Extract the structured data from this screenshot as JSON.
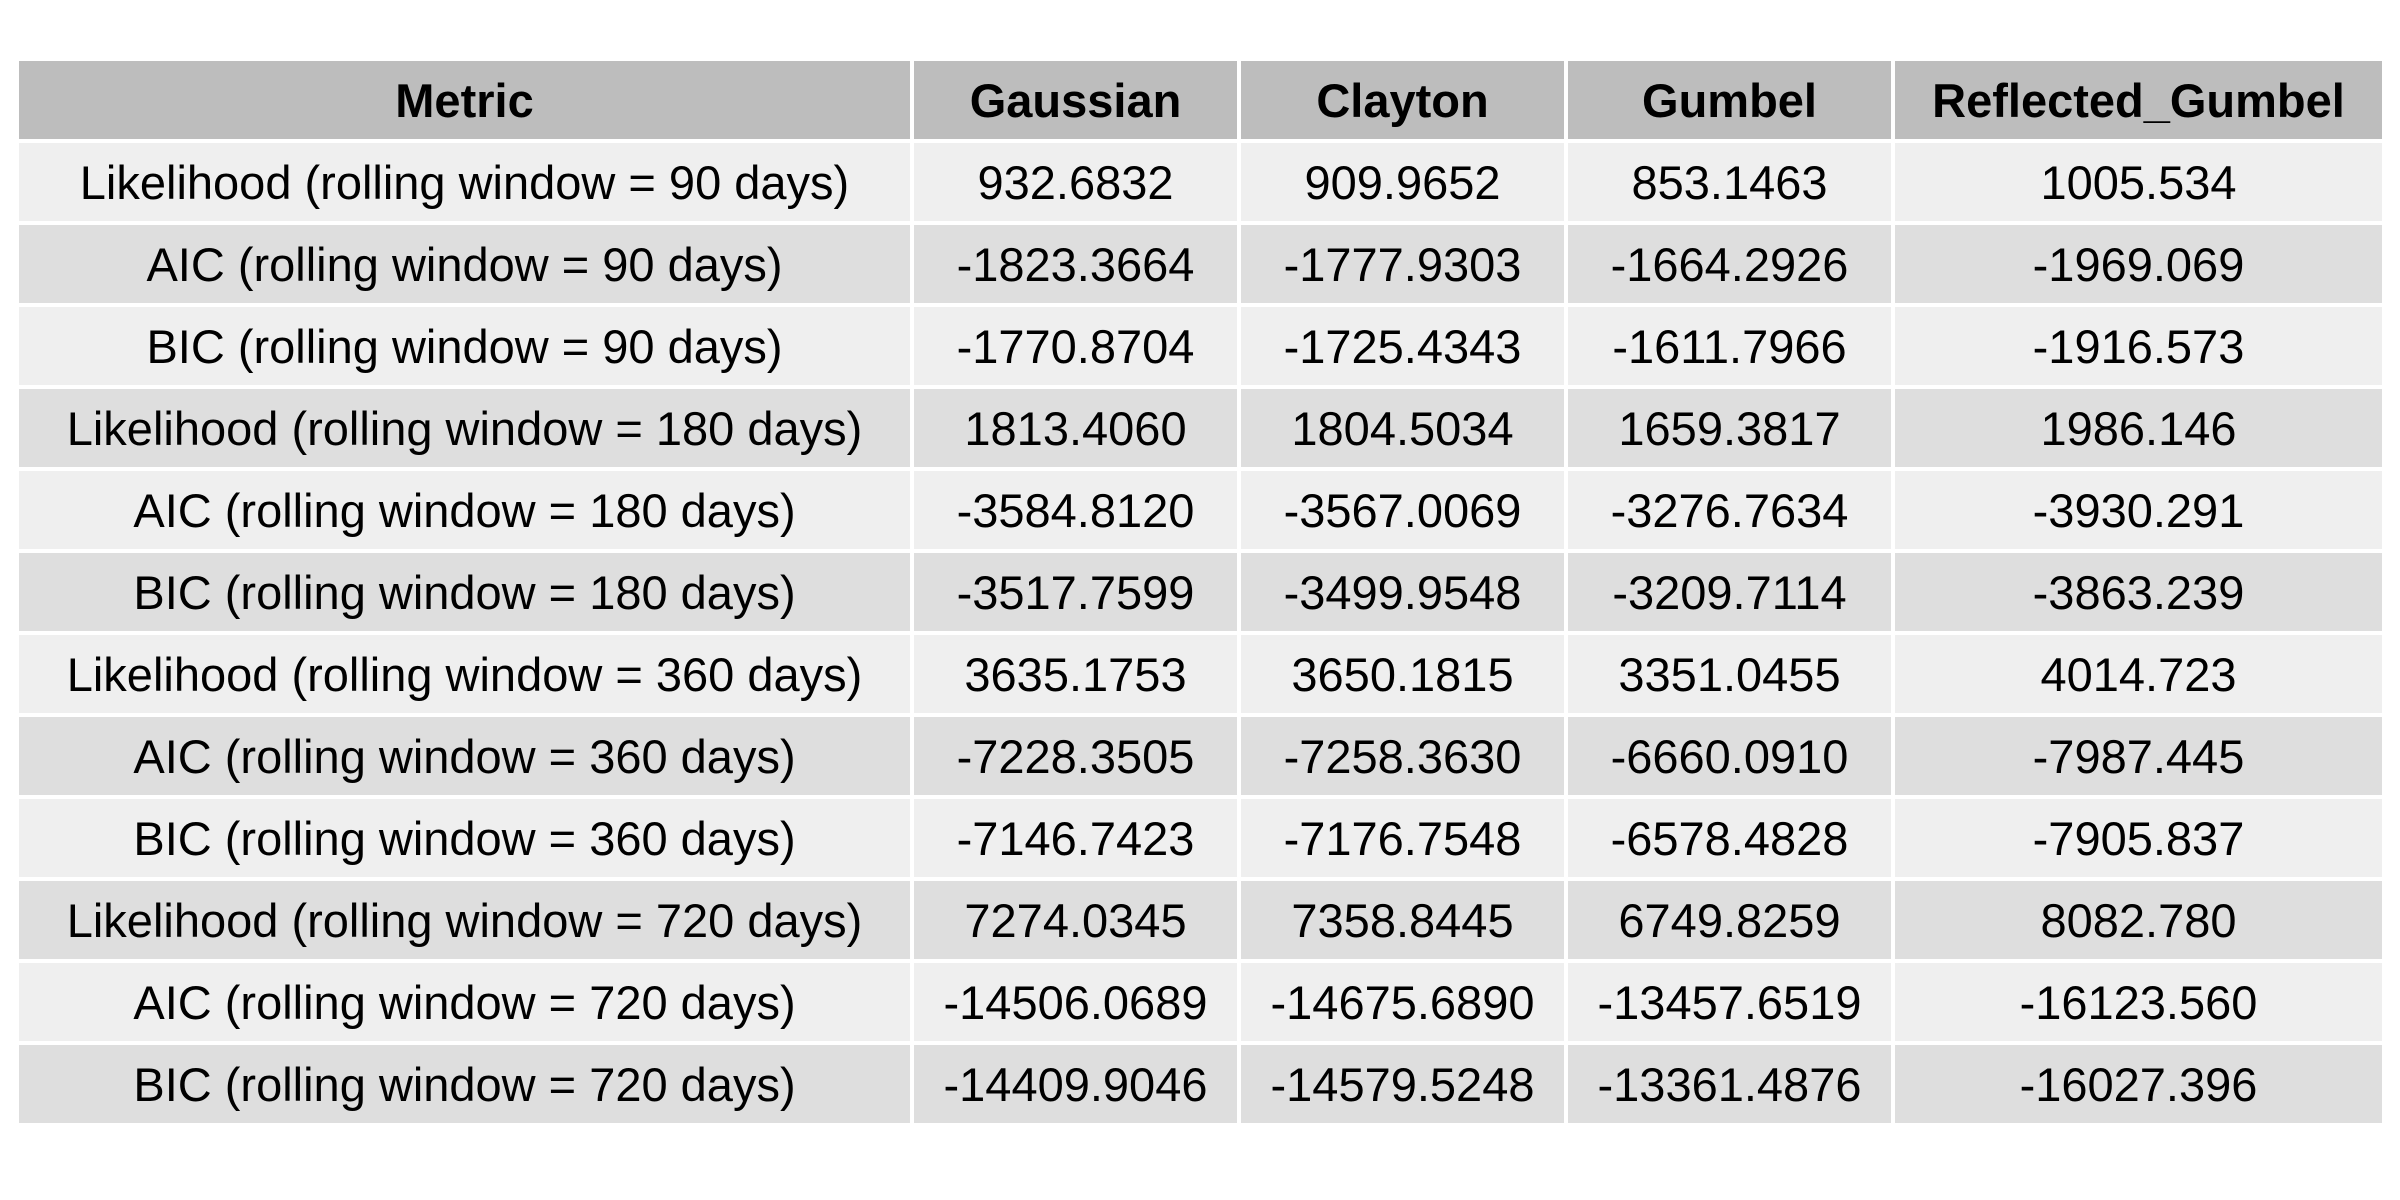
{
  "chart_data": {
    "type": "table",
    "columns": [
      "Metric",
      "Gaussian",
      "Clayton",
      "Gumbel",
      "Reflected_Gumbel"
    ],
    "rows": [
      [
        "Likelihood (rolling window = 90 days)",
        "932.6832",
        "909.9652",
        "853.1463",
        "1005.534"
      ],
      [
        "AIC (rolling window = 90 days)",
        "-1823.3664",
        "-1777.9303",
        "-1664.2926",
        "-1969.069"
      ],
      [
        "BIC (rolling window = 90 days)",
        "-1770.8704",
        "-1725.4343",
        "-1611.7966",
        "-1916.573"
      ],
      [
        "Likelihood (rolling window = 180 days)",
        "1813.4060",
        "1804.5034",
        "1659.3817",
        "1986.146"
      ],
      [
        "AIC (rolling window = 180 days)",
        "-3584.8120",
        "-3567.0069",
        "-3276.7634",
        "-3930.291"
      ],
      [
        "BIC (rolling window = 180 days)",
        "-3517.7599",
        "-3499.9548",
        "-3209.7114",
        "-3863.239"
      ],
      [
        "Likelihood (rolling window = 360 days)",
        "3635.1753",
        "3650.1815",
        "3351.0455",
        "4014.723"
      ],
      [
        "AIC (rolling window = 360 days)",
        "-7228.3505",
        "-7258.3630",
        "-6660.0910",
        "-7987.445"
      ],
      [
        "BIC (rolling window = 360 days)",
        "-7146.7423",
        "-7176.7548",
        "-6578.4828",
        "-7905.837"
      ],
      [
        "Likelihood (rolling window = 720 days)",
        "7274.0345",
        "7358.8445",
        "6749.8259",
        "8082.780"
      ],
      [
        "AIC (rolling window = 720 days)",
        "-14506.0689",
        "-14675.6890",
        "-13457.6519",
        "-16123.560"
      ],
      [
        "BIC (rolling window = 720 days)",
        "-14409.9046",
        "-14579.5248",
        "-13361.4876",
        "-16027.396"
      ]
    ],
    "colors": {
      "header_bg": "#bdbdbd",
      "row_odd_bg": "#efefef",
      "row_even_bg": "#dedede",
      "grid_line": "#ffffff"
    }
  }
}
